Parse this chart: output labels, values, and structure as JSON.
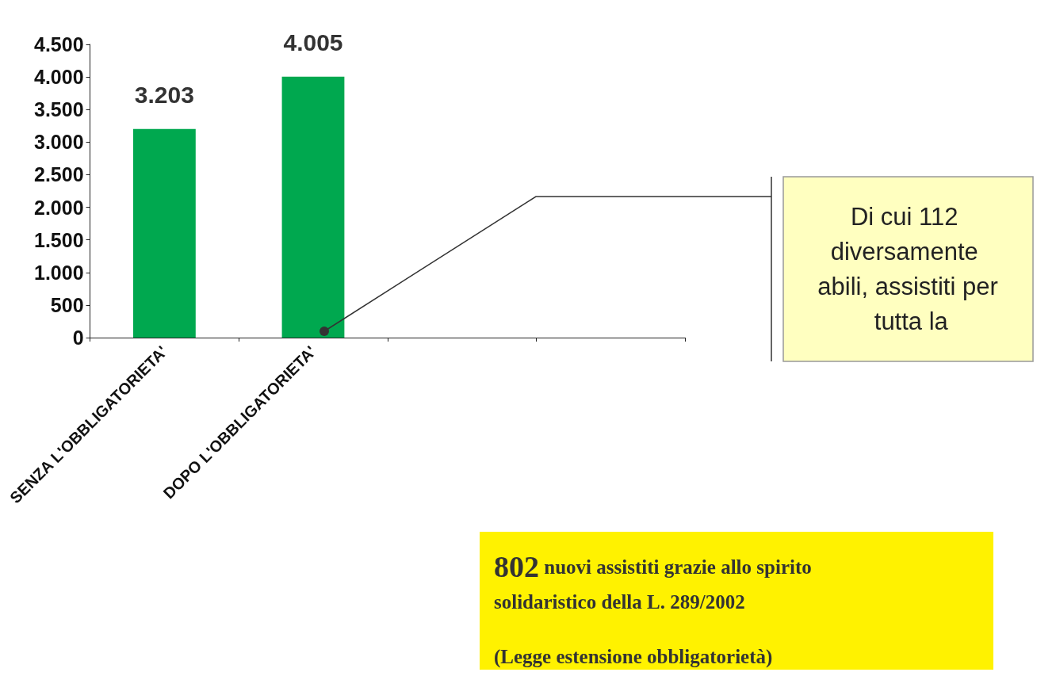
{
  "chart_data": {
    "type": "bar",
    "categories": [
      "SENZA L'OBBLIGATORIETA'",
      "DOPO L'OBBLIGATORIETA'",
      null,
      null
    ],
    "values": [
      3203,
      4005,
      null,
      null
    ],
    "value_labels": [
      "3.203",
      "4.005",
      null,
      null
    ],
    "color": "#00a84f",
    "ylim": [
      0,
      4500
    ],
    "yticks": [
      {
        "value": 0,
        "label": "0"
      },
      {
        "value": 500,
        "label": "500"
      },
      {
        "value": 1000,
        "label": "1.000"
      },
      {
        "value": 1500,
        "label": "1.500"
      },
      {
        "value": 2000,
        "label": "2.000"
      },
      {
        "value": 2500,
        "label": "2.500"
      },
      {
        "value": 3000,
        "label": "3.000"
      },
      {
        "value": 3500,
        "label": "3.500"
      },
      {
        "value": 4000,
        "label": "4.000"
      },
      {
        "value": 4500,
        "label": "4.500"
      }
    ],
    "grid": false,
    "annotations": [
      "Di cui 112 diversamente abili, assistiti per tutta la",
      "802 nuovi assistiti grazie allo spirito solidaristico della L. 289/2002",
      "(Legge estensione obbligatorietà)"
    ]
  }
}
